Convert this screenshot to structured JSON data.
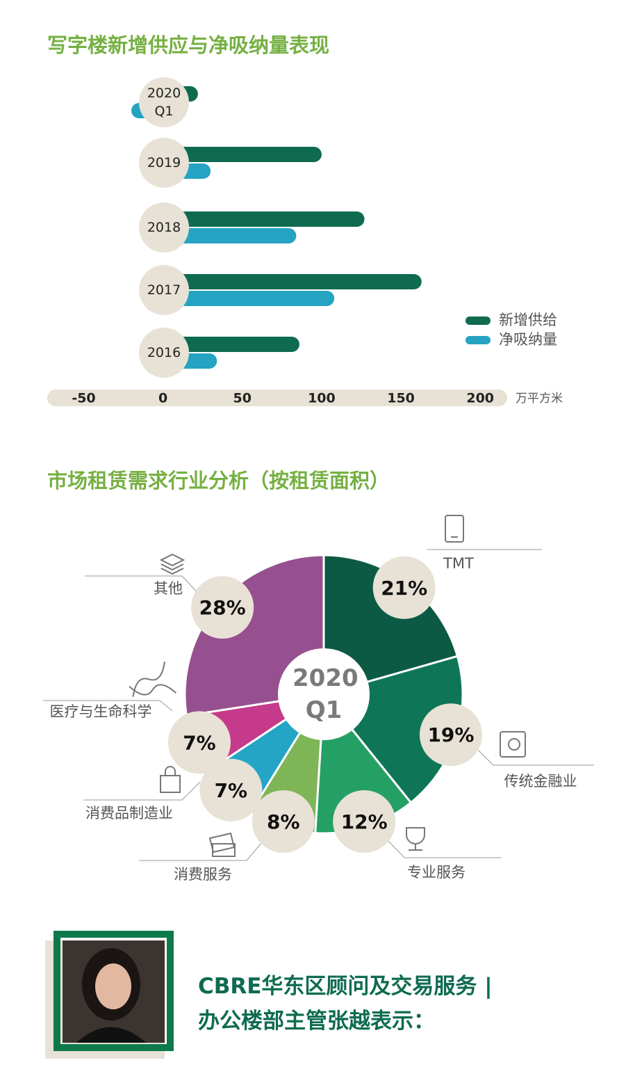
{
  "chart_data": [
    {
      "type": "bar",
      "orientation": "horizontal",
      "title": "写字楼新增供应与净吸纳量表现",
      "categories": [
        "2020 Q1",
        "2019",
        "2018",
        "2017",
        "2016"
      ],
      "series": [
        {
          "name": "新增供给",
          "color": "#0e6b50",
          "values": [
            22,
            100,
            127,
            163,
            86
          ]
        },
        {
          "name": "净吸纳量",
          "color": "#24a3c2",
          "values": [
            -20,
            30,
            84,
            108,
            34
          ]
        }
      ],
      "xlim": [
        -73,
        217
      ],
      "xticks": [
        -50,
        0,
        50,
        100,
        150,
        200
      ],
      "x_unit": "万平方米",
      "legend": "right"
    },
    {
      "type": "pie",
      "title": "市场租赁需求行业分析（按租赁面积）",
      "center_label": "2020 Q1",
      "categories": [
        "TMT",
        "传统金融业",
        "专业服务",
        "消费服务",
        "消费品制造业",
        "医疗与生命科学",
        "其他"
      ],
      "values": [
        21,
        19,
        12,
        8,
        7,
        7,
        28
      ],
      "value_labels": [
        "21%",
        "19%",
        "12%",
        "8%",
        "7%",
        "7%",
        "28%"
      ],
      "colors": [
        "#0d5a44",
        "#0e7656",
        "#25a064",
        "#7db557",
        "#25a5c6",
        "#c53a8b",
        "#96508f"
      ]
    }
  ],
  "footer": {
    "lines": [
      "CBRE华东区顾问及交易服务 |",
      "办公楼部主管张越表示："
    ]
  }
}
